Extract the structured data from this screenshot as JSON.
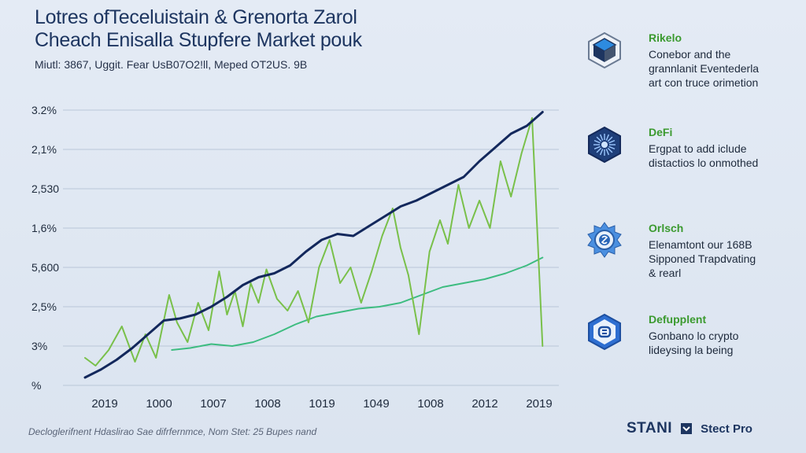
{
  "title_lines": [
    "Lotres ofTeceluistain & Grenorta Zarol",
    "Cheach Enisalla Stupfere Market pouk"
  ],
  "subtitle": "Miutl: 3867, Uggit. Fear UsB07O2!ll, Meped OT2US. 9B",
  "colors": {
    "dark_series": "#13285c",
    "green_series": "#79c04a",
    "teal_series": "#3dbc80",
    "grid": "#b9c6d8",
    "brand": "#1d3560",
    "legend_title": "#3b9a2f"
  },
  "chart_data": {
    "type": "line",
    "title": "Lotres ofTeceluistain & Grenorta Zarol Cheach Enisalla Stupfere Market pouk",
    "y_tick_labels": [
      "3.2%",
      "2,1%",
      "2,530",
      "1,6%",
      "5,600",
      "2,5%",
      "3%",
      "%"
    ],
    "x_tick_labels": [
      "2019",
      "1000",
      "1007",
      "1008",
      "1019",
      "1049",
      "1008",
      "2012",
      "2019"
    ],
    "x_range": [
      0,
      8.8
    ],
    "y_range": [
      0,
      7
    ],
    "grid": true,
    "legend_placement": "right",
    "series": [
      {
        "key": "dark",
        "x": [
          0,
          0.3,
          0.6,
          0.9,
          1.2,
          1.5,
          1.8,
          2.1,
          2.4,
          2.7,
          3.0,
          3.3,
          3.6,
          3.9,
          4.2,
          4.5,
          4.8,
          5.1,
          5.4,
          5.7,
          6.0,
          6.3,
          6.6,
          6.9,
          7.2,
          7.5,
          7.8,
          8.1,
          8.4,
          8.7
        ],
        "y": [
          0.2,
          0.4,
          0.65,
          0.95,
          1.3,
          1.65,
          1.7,
          1.8,
          2.0,
          2.25,
          2.55,
          2.75,
          2.85,
          3.05,
          3.4,
          3.7,
          3.85,
          3.8,
          4.05,
          4.3,
          4.55,
          4.7,
          4.9,
          5.1,
          5.3,
          5.7,
          6.05,
          6.4,
          6.6,
          6.95
        ]
      },
      {
        "key": "green",
        "x": [
          0,
          0.2,
          0.45,
          0.7,
          0.95,
          1.15,
          1.35,
          1.6,
          1.75,
          1.95,
          2.15,
          2.35,
          2.55,
          2.7,
          2.85,
          3.0,
          3.15,
          3.3,
          3.45,
          3.65,
          3.85,
          4.05,
          4.25,
          4.45,
          4.65,
          4.85,
          5.05,
          5.25,
          5.45,
          5.65,
          5.85,
          6.0,
          6.15,
          6.35,
          6.55,
          6.75,
          6.9,
          7.1,
          7.3,
          7.5,
          7.7,
          7.9,
          8.1,
          8.3,
          8.5,
          8.7
        ],
        "y": [
          0.7,
          0.5,
          0.9,
          1.5,
          0.6,
          1.3,
          0.7,
          2.3,
          1.6,
          1.1,
          2.1,
          1.4,
          2.9,
          1.8,
          2.4,
          1.5,
          2.6,
          2.1,
          2.95,
          2.2,
          1.9,
          2.4,
          1.6,
          3.0,
          3.7,
          2.6,
          3.0,
          2.1,
          2.9,
          3.8,
          4.5,
          3.5,
          2.8,
          1.3,
          3.4,
          4.2,
          3.6,
          5.1,
          4.0,
          4.7,
          4.0,
          5.7,
          4.8,
          5.9,
          6.8,
          1.0
        ]
      },
      {
        "key": "teal",
        "x": [
          1.65,
          2.0,
          2.4,
          2.8,
          3.2,
          3.6,
          4.0,
          4.4,
          4.8,
          5.2,
          5.6,
          6.0,
          6.4,
          6.8,
          7.2,
          7.6,
          8.0,
          8.4,
          8.7
        ],
        "y": [
          0.9,
          0.95,
          1.05,
          1.0,
          1.1,
          1.3,
          1.55,
          1.75,
          1.85,
          1.95,
          2.0,
          2.1,
          2.3,
          2.5,
          2.6,
          2.7,
          2.85,
          3.05,
          3.25
        ]
      }
    ]
  },
  "legend": [
    {
      "title": "Rikelo",
      "desc": "Conebor and the\ngrannlanit Eventederla\nart con truce orimetion",
      "icon": "cube-hexagon-icon"
    },
    {
      "title": "DeFi",
      "desc": "Ergpat to add iclude\ndistactios lo onmothed",
      "icon": "starburst-hexagon-icon"
    },
    {
      "title": "Orlsch",
      "desc": "Elenamtont our 168B\nSipponed Trapdvating\n& rearl",
      "icon": "gear-circle-icon"
    },
    {
      "title": "Defupplent",
      "desc": "Gonbano lo crypto\nlideysing la being",
      "icon": "shield-hexagon-icon"
    }
  ],
  "footer": {
    "note": "Decloglerifnent Hdaslirao Sae difrfernmce, Nom Stet: 25 Bupes nand",
    "brand_name": "STANI",
    "brand_pro": "Stect Pro"
  }
}
